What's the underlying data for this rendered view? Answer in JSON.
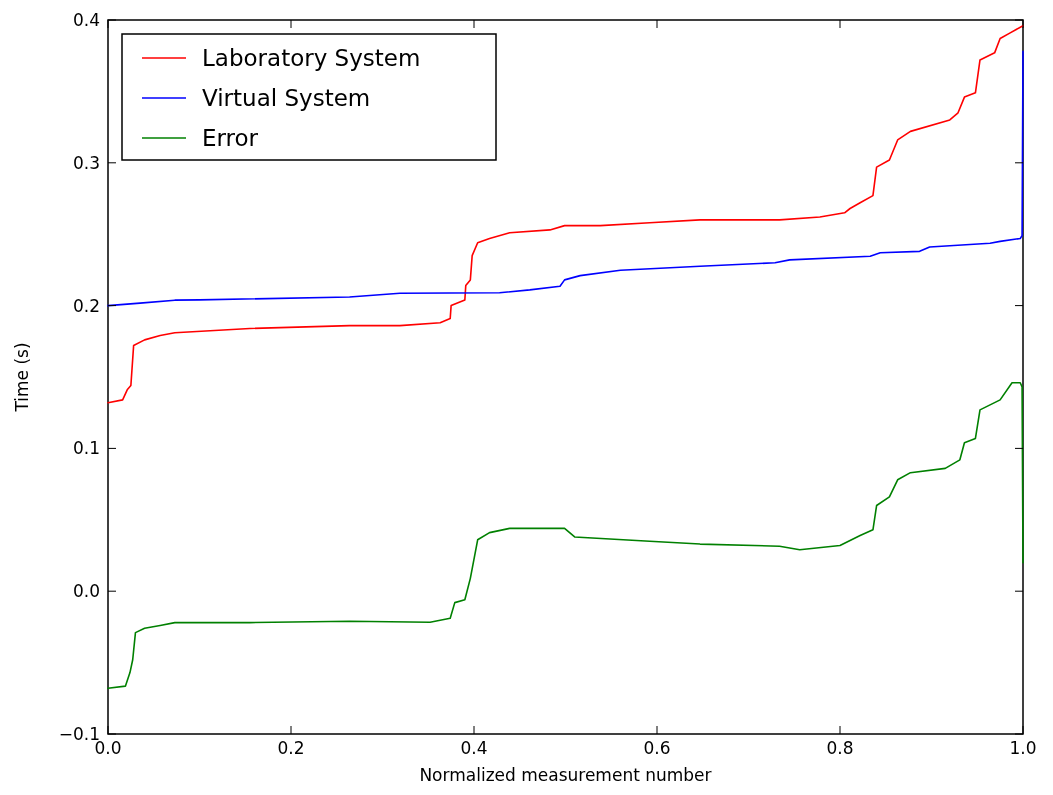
{
  "chart_data": {
    "type": "line",
    "xlabel": "Normalized measurement number",
    "ylabel": "Time (s)",
    "xlim": [
      0,
      1
    ],
    "ylim": [
      -0.1,
      0.4
    ],
    "xticks": [
      {
        "value": 0,
        "label": "0.0"
      },
      0.2,
      0.4,
      0.6,
      0.8,
      {
        "value": 1,
        "label": "1.0"
      }
    ],
    "yticks": [
      {
        "value": -0.1,
        "label": "−0.1"
      },
      {
        "value": 0,
        "label": "0.0"
      },
      0.1,
      0.2,
      0.3,
      0.4
    ],
    "grid": false,
    "legend": "top left",
    "line_style": "solid",
    "marker": "none",
    "series": [
      {
        "name": "Laboratory System",
        "color": "#ff0000",
        "x": [
          0,
          0.016,
          0.021,
          0.025,
          0.028,
          0.04,
          0.057,
          0.073,
          0.155,
          0.264,
          0.319,
          0.363,
          0.374,
          0.375,
          0.39,
          0.391,
          0.396,
          0.398,
          0.404,
          0.417,
          0.439,
          0.483,
          0.499,
          0.538,
          0.592,
          0.647,
          0.734,
          0.778,
          0.805,
          0.811,
          0.822,
          0.836,
          0.84,
          0.854,
          0.863,
          0.877,
          0.92,
          0.929,
          0.936,
          0.948,
          0.953,
          0.969,
          0.975,
          0.986,
          1.0
        ],
        "values": [
          0.132,
          0.134,
          0.141,
          0.144,
          0.172,
          0.176,
          0.179,
          0.181,
          0.184,
          0.186,
          0.186,
          0.188,
          0.191,
          0.2,
          0.204,
          0.214,
          0.218,
          0.235,
          0.244,
          0.247,
          0.251,
          0.253,
          0.256,
          0.256,
          0.258,
          0.26,
          0.26,
          0.262,
          0.265,
          0.268,
          0.272,
          0.277,
          0.297,
          0.302,
          0.316,
          0.322,
          0.33,
          0.335,
          0.346,
          0.349,
          0.372,
          0.377,
          0.387,
          0.391,
          0.396
        ]
      },
      {
        "name": "Virtual System",
        "color": "#0000ff",
        "x": [
          0,
          0.035,
          0.073,
          0.1,
          0.264,
          0.319,
          0.428,
          0.461,
          0.494,
          0.499,
          0.516,
          0.56,
          0.647,
          0.729,
          0.745,
          0.833,
          0.844,
          0.887,
          0.898,
          0.964,
          0.975,
          0.997,
          0.999,
          1.0
        ],
        "values": [
          0.2,
          0.2017,
          0.2038,
          0.204,
          0.206,
          0.2087,
          0.209,
          0.211,
          0.2136,
          0.218,
          0.221,
          0.2248,
          0.2276,
          0.23,
          0.232,
          0.2346,
          0.237,
          0.238,
          0.241,
          0.2437,
          0.245,
          0.247,
          0.249,
          0.378
        ]
      },
      {
        "name": "Error",
        "color": "#008000",
        "x": [
          0,
          0.019,
          0.024,
          0.027,
          0.03,
          0.04,
          0.057,
          0.073,
          0.155,
          0.264,
          0.352,
          0.374,
          0.379,
          0.39,
          0.396,
          0.404,
          0.417,
          0.439,
          0.499,
          0.51,
          0.592,
          0.647,
          0.734,
          0.756,
          0.8,
          0.822,
          0.836,
          0.84,
          0.854,
          0.863,
          0.877,
          0.915,
          0.931,
          0.936,
          0.948,
          0.953,
          0.975,
          0.988,
          0.997,
          0.999,
          1.0
        ],
        "values": [
          -0.068,
          -0.0665,
          -0.057,
          -0.048,
          -0.029,
          -0.026,
          -0.024,
          -0.022,
          -0.022,
          -0.021,
          -0.0217,
          -0.019,
          -0.008,
          -0.006,
          0.009,
          0.036,
          0.041,
          0.044,
          0.044,
          0.038,
          0.035,
          0.033,
          0.0315,
          0.029,
          0.032,
          0.039,
          0.043,
          0.06,
          0.066,
          0.078,
          0.083,
          0.086,
          0.092,
          0.104,
          0.107,
          0.127,
          0.134,
          0.146,
          0.146,
          0.143,
          0.02
        ]
      }
    ]
  }
}
